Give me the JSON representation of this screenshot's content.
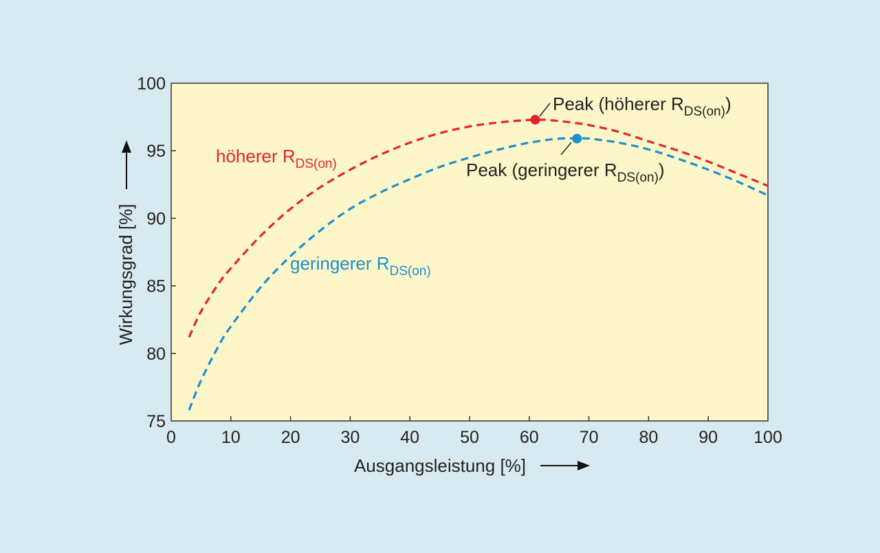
{
  "chart_data": {
    "type": "line",
    "xlabel": "Ausgangsleistung [%]",
    "ylabel": "Wirkungsgrad [%]",
    "xlim": [
      0,
      100
    ],
    "ylim": [
      75,
      100
    ],
    "xticks": [
      0,
      10,
      20,
      30,
      40,
      50,
      60,
      70,
      80,
      90,
      100
    ],
    "yticks": [
      75,
      80,
      85,
      90,
      95,
      100
    ],
    "grid": false,
    "background": "#fdf6c8",
    "series": [
      {
        "name": "höherer R_DS(on)",
        "color": "#e3242b",
        "style": "dashed",
        "x": [
          3,
          5,
          8,
          10,
          15,
          20,
          25,
          30,
          35,
          40,
          45,
          50,
          55,
          61,
          65,
          70,
          75,
          80,
          85,
          90,
          95,
          100
        ],
        "y": [
          81.2,
          83.1,
          85.2,
          86.3,
          88.7,
          90.7,
          92.3,
          93.6,
          94.7,
          95.6,
          96.3,
          96.8,
          97.1,
          97.3,
          97.2,
          96.9,
          96.4,
          95.7,
          95.0,
          94.2,
          93.3,
          92.4
        ]
      },
      {
        "name": "geringerer R_DS(on)",
        "color": "#1b8fd0",
        "style": "dashed",
        "x": [
          3,
          5,
          8,
          10,
          15,
          20,
          25,
          30,
          35,
          40,
          45,
          50,
          55,
          60,
          65,
          68,
          70,
          75,
          80,
          85,
          90,
          95,
          100
        ],
        "y": [
          75.8,
          78.0,
          80.6,
          82.0,
          84.9,
          87.2,
          89.1,
          90.7,
          91.9,
          92.9,
          93.8,
          94.5,
          95.1,
          95.6,
          95.9,
          95.9,
          95.9,
          95.6,
          95.1,
          94.4,
          93.6,
          92.7,
          91.7
        ]
      }
    ],
    "peaks": [
      {
        "x": 61,
        "y": 97.3,
        "color": "#e3242b"
      },
      {
        "x": 68,
        "y": 95.9,
        "color": "#1b8fd0"
      }
    ],
    "annotations": {
      "peak_high": {
        "text": "Peak (höherer R",
        "sub": "DS(on)",
        "close": ")"
      },
      "peak_low": {
        "text": "Peak (geringerer R",
        "sub": "DS(on)",
        "close": ")"
      },
      "label_high": {
        "text": "höherer R",
        "sub": "DS(on)"
      },
      "label_low": {
        "text": "geringerer R",
        "sub": "DS(on)"
      }
    }
  }
}
